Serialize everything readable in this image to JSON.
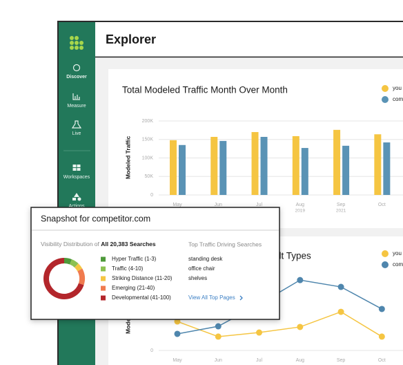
{
  "sidebar": {
    "nav": [
      "Discover",
      "Measure",
      "Live",
      "Workspaces",
      "Actions"
    ]
  },
  "header": {
    "title": "Explorer"
  },
  "chart_data": [
    {
      "type": "bar",
      "title": "Total Modeled Traffic Month Over Month",
      "ylabel": "Modeled Traffic",
      "categories": [
        "May",
        "Jun",
        "Jul",
        "Aug",
        "Sep",
        "Oct"
      ],
      "x_sublabels": [
        null,
        null,
        null,
        "2019",
        "2021",
        null
      ],
      "series": [
        {
          "name": "you",
          "color": "#f5c542",
          "values": [
            148000,
            157000,
            170000,
            159000,
            176000,
            164000
          ]
        },
        {
          "name": "com",
          "color": "#5a93b5",
          "values": [
            135000,
            146000,
            157000,
            127000,
            133000,
            142000
          ]
        }
      ],
      "ylim": [
        0,
        200000
      ],
      "yticks": [
        0,
        {
          "value": 50000,
          "label": "50K"
        },
        {
          "value": 100000,
          "label": "100K"
        },
        {
          "value": 150000,
          "label": "150K"
        },
        {
          "value": 200000,
          "label": "200K"
        }
      ],
      "grid": true
    },
    {
      "type": "line",
      "title": "ult Types",
      "ylabel": "Mode",
      "categories": [
        "May",
        "Jun",
        "Jul",
        "Aug",
        "Sep",
        "Oct"
      ],
      "series": [
        {
          "name": "you",
          "color": "#f5c542",
          "values": [
            27.6,
            13.2,
            17.1,
            22.4,
            36.8,
            13.2
          ]
        },
        {
          "name": "com",
          "color": "#4f86ad",
          "values": [
            15.8,
            23,
            44,
            67,
            60.5,
            39.5
          ]
        }
      ],
      "ylim": [
        0,
        100
      ],
      "yticks": [
        0
      ],
      "grid": true
    },
    {
      "type": "donut",
      "categories": [
        "Hyper Traffic (1-3)",
        "Traffic (4-10)",
        "Striking Distance (11-20)",
        "Emerging (21-40)",
        "Developmental (41-100)"
      ],
      "colors": [
        "#4e9a3a",
        "#8cc152",
        "#f5c542",
        "#f07b4f",
        "#b3262b"
      ],
      "values": [
        6,
        6,
        5,
        13,
        70
      ]
    }
  ],
  "snapshot": {
    "title": "Snapshot for competitor.com",
    "subtitle_prefix": "Visibility Distribution of ",
    "subtitle_bold": "All 20,383 Searches"
  },
  "top_searches": {
    "title": "Top Traffic Driving Searches",
    "items": [
      "standing desk",
      "office chair",
      "shelves"
    ],
    "link": "View All Top Pages"
  }
}
